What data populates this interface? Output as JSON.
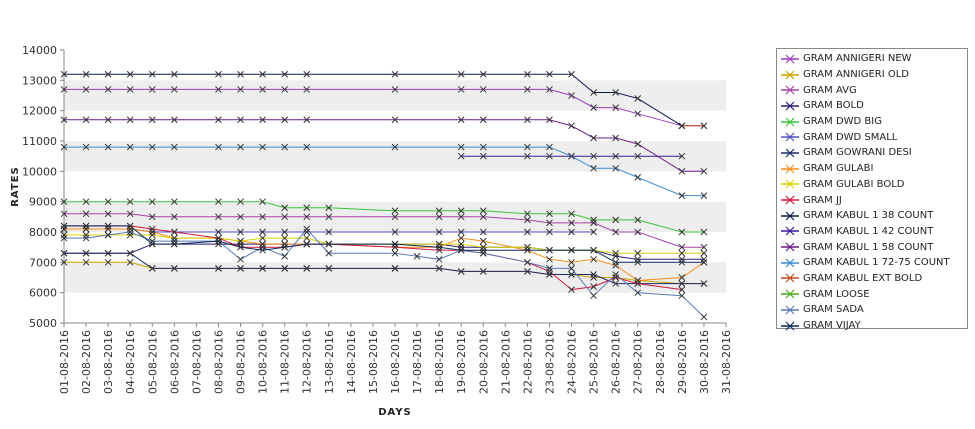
{
  "chart_data": {
    "type": "line",
    "title": "",
    "xlabel": "DAYS",
    "ylabel": "RATES",
    "ylim": [
      5000,
      14000
    ],
    "yticks": [
      5000,
      6000,
      7000,
      8000,
      9000,
      10000,
      11000,
      12000,
      13000,
      14000
    ],
    "categories": [
      "01-08-2016",
      "02-08-2016",
      "03-08-2016",
      "04-08-2016",
      "05-08-2016",
      "06-08-2016",
      "07-08-2016",
      "08-08-2016",
      "09-08-2016",
      "10-08-2016",
      "11-08-2016",
      "12-08-2016",
      "13-08-2016",
      "14-08-2016",
      "15-08-2016",
      "16-08-2016",
      "17-08-2016",
      "18-08-2016",
      "19-08-2016",
      "20-08-2016",
      "21-08-2016",
      "22-08-2016",
      "23-08-2016",
      "24-08-2016",
      "25-08-2016",
      "26-08-2016",
      "27-08-2016",
      "28-08-2016",
      "29-08-2016",
      "30-08-2016",
      "31-08-2016"
    ],
    "grid": "horizontal bands",
    "legend_position": "right",
    "series": [
      {
        "name": "GRAM ANNIGERI NEW",
        "color": "#9b3fbf",
        "values": [
          12700,
          12700,
          12700,
          12700,
          12700,
          12700,
          null,
          12700,
          12700,
          12700,
          12700,
          12700,
          null,
          null,
          null,
          12700,
          null,
          null,
          12700,
          12700,
          null,
          12700,
          12700,
          12500,
          12100,
          12100,
          11900,
          null,
          11500,
          11500,
          null
        ]
      },
      {
        "name": "GRAM ANNIGERI OLD",
        "color": "#c9a300",
        "values": [
          7000,
          7000,
          7000,
          7000,
          6800,
          6800,
          null,
          6800,
          6800,
          6800,
          6800,
          6800,
          6800,
          null,
          null,
          6800,
          null,
          6800,
          6700,
          6700,
          null,
          6700,
          6600,
          6600,
          6500,
          6500,
          6400,
          null,
          6300,
          6300,
          null
        ]
      },
      {
        "name": "GRAM AVG",
        "color": "#aa40aa",
        "values": [
          8600,
          8600,
          8600,
          8600,
          8500,
          8500,
          null,
          8500,
          8500,
          8500,
          8500,
          8500,
          8500,
          null,
          null,
          8500,
          null,
          8500,
          8500,
          8500,
          null,
          8400,
          8300,
          8300,
          8300,
          8000,
          8000,
          null,
          7500,
          7500,
          null
        ]
      },
      {
        "name": "GRAM BOLD",
        "color": "#2a1a7a",
        "values": [
          7300,
          7300,
          7300,
          7300,
          7600,
          7600,
          null,
          7600,
          7600,
          7600,
          7600,
          7600,
          7600,
          null,
          null,
          7600,
          null,
          7600,
          7500,
          7500,
          null,
          7500,
          7400,
          7400,
          7400,
          7200,
          7100,
          null,
          7100,
          7100,
          null
        ]
      },
      {
        "name": "GRAM DWD BIG",
        "color": "#3cc43c",
        "values": [
          9000,
          9000,
          9000,
          9000,
          9000,
          9000,
          null,
          9000,
          9000,
          9000,
          8800,
          8800,
          8800,
          null,
          null,
          8700,
          null,
          8700,
          8700,
          8700,
          null,
          8600,
          8600,
          8600,
          8400,
          8400,
          8400,
          null,
          8000,
          8000,
          null
        ]
      },
      {
        "name": "GRAM DWD SMALL",
        "color": "#5050c0",
        "values": [
          8100,
          8100,
          8100,
          8100,
          8000,
          8000,
          null,
          8000,
          8000,
          8000,
          8000,
          8000,
          8000,
          null,
          null,
          8000,
          null,
          8000,
          8000,
          8000,
          null,
          8000,
          8000,
          8000,
          8000,
          null,
          null,
          null,
          null,
          null,
          null
        ]
      },
      {
        "name": "GRAM GOWRANI DESI",
        "color": "#1a2a6a",
        "values": [
          7300,
          7300,
          7300,
          7300,
          6800,
          6800,
          null,
          6800,
          6800,
          6800,
          6800,
          6800,
          6800,
          null,
          null,
          6800,
          null,
          6800,
          6700,
          6700,
          null,
          6700,
          6600,
          6600,
          6600,
          6300,
          6300,
          null,
          6300,
          6300,
          null
        ]
      },
      {
        "name": "GRAM GULABI",
        "color": "#ff8c1a",
        "values": [
          8100,
          8100,
          8100,
          8100,
          8000,
          7800,
          null,
          7800,
          7700,
          7600,
          7600,
          7600,
          7600,
          null,
          null,
          7500,
          null,
          7500,
          7800,
          7700,
          null,
          7400,
          7100,
          7000,
          7100,
          6900,
          6400,
          null,
          6500,
          7000,
          null
        ]
      },
      {
        "name": "GRAM GULABI BOLD",
        "color": "#d8d400",
        "values": [
          7900,
          7900,
          7900,
          7900,
          7900,
          7800,
          null,
          7800,
          7700,
          7800,
          7800,
          7800,
          7600,
          null,
          null,
          7600,
          null,
          7600,
          7600,
          7500,
          null,
          7500,
          7400,
          7400,
          7400,
          7300,
          7300,
          null,
          7300,
          7300,
          null
        ]
      },
      {
        "name": "GRAM JJ",
        "color": "#cc1a3a",
        "values": [
          8200,
          8200,
          8200,
          8200,
          8100,
          8000,
          null,
          7800,
          7500,
          7500,
          7500,
          7600,
          7600,
          null,
          null,
          7500,
          null,
          7400,
          7400,
          7300,
          null,
          7000,
          6700,
          6100,
          6200,
          6500,
          6300,
          null,
          6100,
          null,
          null
        ]
      },
      {
        "name": "GRAM KABUL 1 38 COUNT",
        "color": "#0a1a4a",
        "values": [
          13200,
          13200,
          13200,
          13200,
          13200,
          13200,
          null,
          13200,
          13200,
          13200,
          13200,
          13200,
          null,
          null,
          null,
          13200,
          null,
          null,
          13200,
          13200,
          null,
          13200,
          13200,
          13200,
          12600,
          12600,
          12400,
          null,
          11500,
          null,
          null
        ]
      },
      {
        "name": "GRAM KABUL 1 42 COUNT",
        "color": "#3a1aa0",
        "values": [
          null,
          null,
          null,
          null,
          null,
          null,
          null,
          null,
          null,
          null,
          null,
          null,
          null,
          null,
          null,
          null,
          null,
          null,
          10500,
          10500,
          null,
          10500,
          10500,
          10500,
          10500,
          10500,
          10500,
          null,
          10500,
          null,
          null
        ]
      },
      {
        "name": "GRAM KABUL 1 58 COUNT",
        "color": "#6a1a8a",
        "values": [
          11700,
          11700,
          11700,
          11700,
          11700,
          11700,
          null,
          11700,
          11700,
          11700,
          11700,
          11700,
          null,
          null,
          null,
          11700,
          null,
          null,
          11700,
          11700,
          null,
          11700,
          11700,
          11500,
          11100,
          11100,
          10900,
          null,
          10000,
          10000,
          null
        ]
      },
      {
        "name": "GRAM KABUL 1 72-75 COUNT",
        "color": "#3a8ad0",
        "values": [
          10800,
          10800,
          10800,
          10800,
          10800,
          10800,
          null,
          10800,
          10800,
          10800,
          10800,
          10800,
          null,
          null,
          null,
          10800,
          null,
          null,
          10800,
          10800,
          null,
          10800,
          10800,
          10500,
          10100,
          10100,
          9800,
          null,
          9200,
          9200,
          null
        ]
      },
      {
        "name": "GRAM KABUL EXT BOLD",
        "color": "#c04a1a",
        "values": [
          null,
          null,
          null,
          null,
          null,
          null,
          null,
          null,
          null,
          null,
          null,
          null,
          null,
          null,
          null,
          null,
          null,
          null,
          null,
          null,
          null,
          null,
          null,
          null,
          null,
          null,
          null,
          null,
          11500,
          11500,
          null
        ]
      },
      {
        "name": "GRAM LOOSE",
        "color": "#4aaa1a",
        "values": [
          null,
          null,
          null,
          null,
          null,
          null,
          null,
          null,
          null,
          null,
          null,
          null,
          null,
          null,
          null,
          null,
          null,
          null,
          null,
          null,
          null,
          null,
          null,
          null,
          null,
          null,
          null,
          null,
          null,
          null,
          null
        ]
      },
      {
        "name": "GRAM SADA",
        "color": "#5a7ab8",
        "values": [
          7800,
          7800,
          7900,
          8000,
          7700,
          7700,
          null,
          7700,
          7100,
          7500,
          7200,
          8100,
          7300,
          null,
          null,
          7300,
          7200,
          7100,
          7400,
          7300,
          null,
          7000,
          6800,
          6800,
          5900,
          6600,
          6000,
          null,
          5900,
          5200,
          null
        ]
      },
      {
        "name": "GRAM VIJAY",
        "color": "#0a2a5a",
        "values": [
          8200,
          8200,
          8200,
          8200,
          7600,
          7600,
          null,
          7700,
          7500,
          7400,
          7500,
          7600,
          7600,
          null,
          null,
          7600,
          null,
          7500,
          7400,
          7400,
          null,
          7400,
          7400,
          7400,
          7400,
          7000,
          7000,
          null,
          7000,
          7000,
          null
        ]
      }
    ]
  }
}
